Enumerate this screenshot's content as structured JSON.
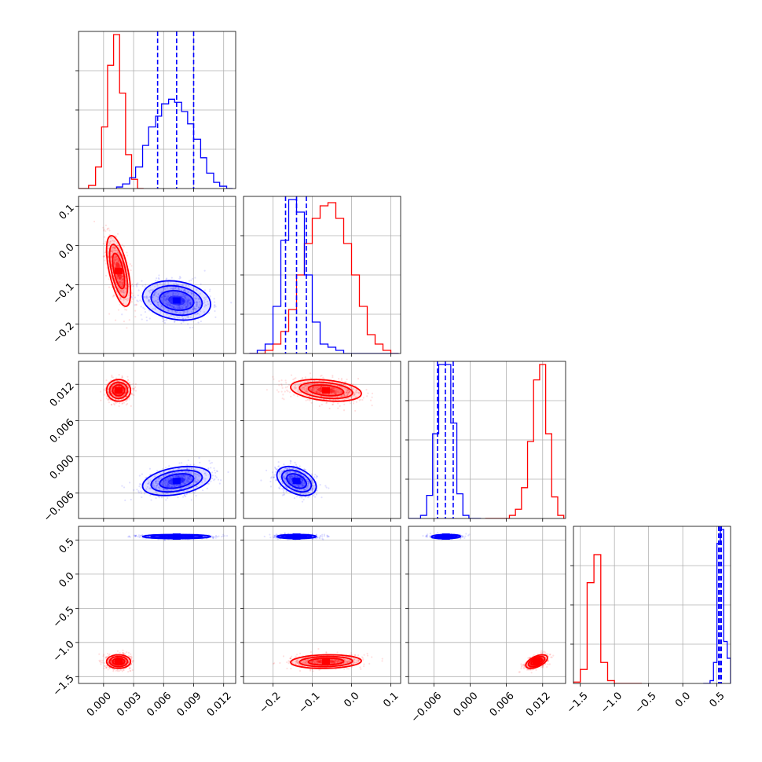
{
  "chart_data": {
    "type": "corner",
    "grid": true,
    "colors": {
      "series_a": "#ff0000",
      "series_b": "#0000ff"
    },
    "parameters": [
      {
        "id": "p0",
        "range": [
          -0.0025,
          0.0132
        ],
        "ticks": [
          0.0,
          0.003,
          0.006,
          0.009,
          0.012
        ],
        "tick_labels": [
          "0.000",
          "0.003",
          "0.006",
          "0.009",
          "0.012"
        ]
      },
      {
        "id": "p1",
        "range": [
          -0.275,
          0.125
        ],
        "ticks": [
          -0.2,
          -0.1,
          0.0,
          0.1
        ],
        "tick_labels": [
          "−0.2",
          "−0.1",
          "0.0",
          "0.1"
        ]
      },
      {
        "id": "p2",
        "range": [
          -0.0102,
          0.0158
        ],
        "ticks": [
          -0.006,
          0.0,
          0.006,
          0.012
        ],
        "tick_labels": [
          "−0.006",
          "0.000",
          "0.006",
          "0.012"
        ]
      },
      {
        "id": "p3",
        "range": [
          -1.6,
          0.7
        ],
        "ticks": [
          -1.5,
          -1.0,
          -0.5,
          0.0,
          0.5
        ],
        "tick_labels": [
          "−1.5",
          "−1.0",
          "−0.5",
          "0.0",
          "0.5"
        ]
      }
    ],
    "y_tick_labels": {
      "p1": [
        "−0.2",
        "−0.1",
        "0.0",
        "0.1"
      ],
      "p2": [
        "−0.006",
        "0.000",
        "0.006",
        "0.012"
      ],
      "p3": [
        "−1.5",
        "−1.0",
        "−0.5",
        "0.0",
        "0.5"
      ]
    },
    "series": [
      {
        "id": "red",
        "means": [
          0.0015,
          -0.065,
          0.011,
          -1.28
        ],
        "sigmas": [
          0.0006,
          0.045,
          0.0009,
          0.05
        ],
        "corr": {
          "0-1": -0.6,
          "0-2": 0.0,
          "0-3": 0.0,
          "1-2": -0.3,
          "1-3": 0.1,
          "2-3": 0.55
        }
      },
      {
        "id": "blue",
        "means": [
          0.0073,
          -0.14,
          -0.004,
          0.55
        ],
        "sigmas": [
          0.0017,
          0.025,
          0.0012,
          0.015
        ],
        "corr": {
          "0-1": -0.2,
          "0-2": 0.35,
          "0-3": 0.0,
          "1-2": -0.4,
          "1-3": 0.0,
          "2-3": 0.1
        }
      }
    ],
    "quantile_lines": {
      "p0": [
        0.0054,
        0.0073,
        0.009
      ],
      "p1": [
        -0.168,
        -0.14,
        -0.115
      ],
      "p2": [
        -0.0054,
        -0.0041,
        -0.0028
      ],
      "p3": [
        0.525,
        0.545,
        0.565
      ]
    },
    "histograms": {
      "p0": {
        "red": {
          "edges": [
            -0.0025,
            -0.0015,
            -0.0008,
            -0.0002,
            0.0004,
            0.001,
            0.0016,
            0.0022,
            0.0028,
            0.0034,
            0.004
          ],
          "counts": [
            0.0,
            0.02,
            0.14,
            0.4,
            0.8,
            1.0,
            0.62,
            0.22,
            0.06,
            0.0
          ]
        },
        "blue": {
          "edges": [
            0.0013,
            0.0019,
            0.0026,
            0.0032,
            0.0039,
            0.0045,
            0.0052,
            0.0058,
            0.0065,
            0.0071,
            0.0078,
            0.0084,
            0.009,
            0.0097,
            0.0103,
            0.011,
            0.0116,
            0.0123,
            0.0129
          ],
          "counts": [
            0.01,
            0.03,
            0.07,
            0.14,
            0.28,
            0.4,
            0.47,
            0.55,
            0.58,
            0.56,
            0.5,
            0.42,
            0.32,
            0.2,
            0.1,
            0.04,
            0.015,
            0.0
          ]
        }
      },
      "p1": {
        "red": {
          "edges": [
            -0.26,
            -0.24,
            -0.22,
            -0.2,
            -0.18,
            -0.16,
            -0.14,
            -0.12,
            -0.1,
            -0.08,
            -0.06,
            -0.04,
            -0.02,
            0.0,
            0.02,
            0.04,
            0.06,
            0.08,
            0.1,
            0.12
          ],
          "counts": [
            0.0,
            0.0,
            0.02,
            0.06,
            0.14,
            0.28,
            0.5,
            0.7,
            0.86,
            0.94,
            0.96,
            0.86,
            0.7,
            0.5,
            0.3,
            0.12,
            0.06,
            0.02,
            0.0
          ]
        },
        "blue": {
          "edges": [
            -0.26,
            -0.24,
            -0.22,
            -0.2,
            -0.18,
            -0.16,
            -0.14,
            -0.12,
            -0.1,
            -0.08,
            -0.06,
            -0.04,
            -0.02,
            0.0,
            0.02,
            0.04,
            0.06,
            0.08,
            0.1,
            0.12
          ],
          "counts": [
            0.0,
            0.02,
            0.06,
            0.3,
            0.72,
            0.98,
            0.9,
            0.5,
            0.2,
            0.06,
            0.04,
            0.02,
            0.0,
            0.0,
            0.0,
            0.0,
            0.0,
            0.0,
            0.0
          ]
        }
      },
      "p2": {
        "red": {
          "edges": [
            0.0025,
            0.0035,
            0.0045,
            0.0055,
            0.0065,
            0.0075,
            0.0085,
            0.0095,
            0.0105,
            0.0115,
            0.0125,
            0.0135,
            0.0145,
            0.0155
          ],
          "counts": [
            0.0,
            0.0,
            0.0,
            0.0,
            0.02,
            0.06,
            0.2,
            0.5,
            0.9,
            1.0,
            0.55,
            0.14,
            0.02
          ]
        },
        "blue": {
          "edges": [
            -0.0102,
            -0.0092,
            -0.0082,
            -0.0072,
            -0.0062,
            -0.0052,
            -0.0042,
            -0.0032,
            -0.0022,
            -0.0012,
            -0.0002,
            0.0008,
            0.0018
          ],
          "counts": [
            0.0,
            0.0,
            0.02,
            0.15,
            0.55,
            1.0,
            1.0,
            0.62,
            0.16,
            0.02,
            0.0,
            0.0
          ]
        }
      },
      "p3": {
        "red": {
          "edges": [
            -1.6,
            -1.5,
            -1.4,
            -1.3,
            -1.2,
            -1.1,
            -1.0,
            -0.9,
            -0.8,
            -0.7,
            -0.6
          ],
          "counts": [
            0.01,
            0.1,
            0.72,
            0.92,
            0.15,
            0.02,
            0.0,
            0.0,
            0.0,
            0.0
          ]
        },
        "blue": {
          "edges": [
            0.3,
            0.4,
            0.45,
            0.5,
            0.55,
            0.6,
            0.65,
            0.7
          ],
          "counts": [
            0.0,
            0.02,
            0.15,
            1.0,
            1.1,
            0.3,
            0.18
          ]
        }
      }
    }
  }
}
